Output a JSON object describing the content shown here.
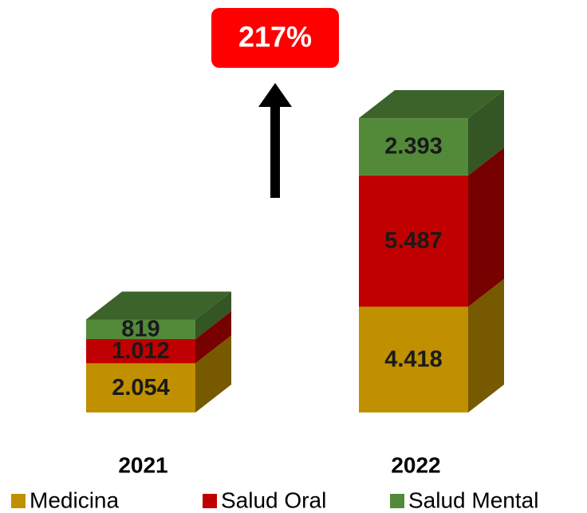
{
  "chart_data": {
    "type": "stacked-bar-3d",
    "annotations": [
      "217%"
    ],
    "categories": [
      "2021",
      "2022"
    ],
    "series": [
      {
        "name": "Medicina",
        "color": "#c09000",
        "values": [
          2054,
          4418
        ],
        "value_labels": [
          "2.054",
          "4.418"
        ]
      },
      {
        "name": "Salud Oral",
        "color": "#c00000",
        "values": [
          1012,
          5487
        ],
        "value_labels": [
          "1.012",
          "5.487"
        ]
      },
      {
        "name": "Salud Mental",
        "color": "#528a3a",
        "values": [
          819,
          2393
        ],
        "value_labels": [
          "819",
          "2.393"
        ]
      }
    ],
    "legend": "bottom"
  }
}
